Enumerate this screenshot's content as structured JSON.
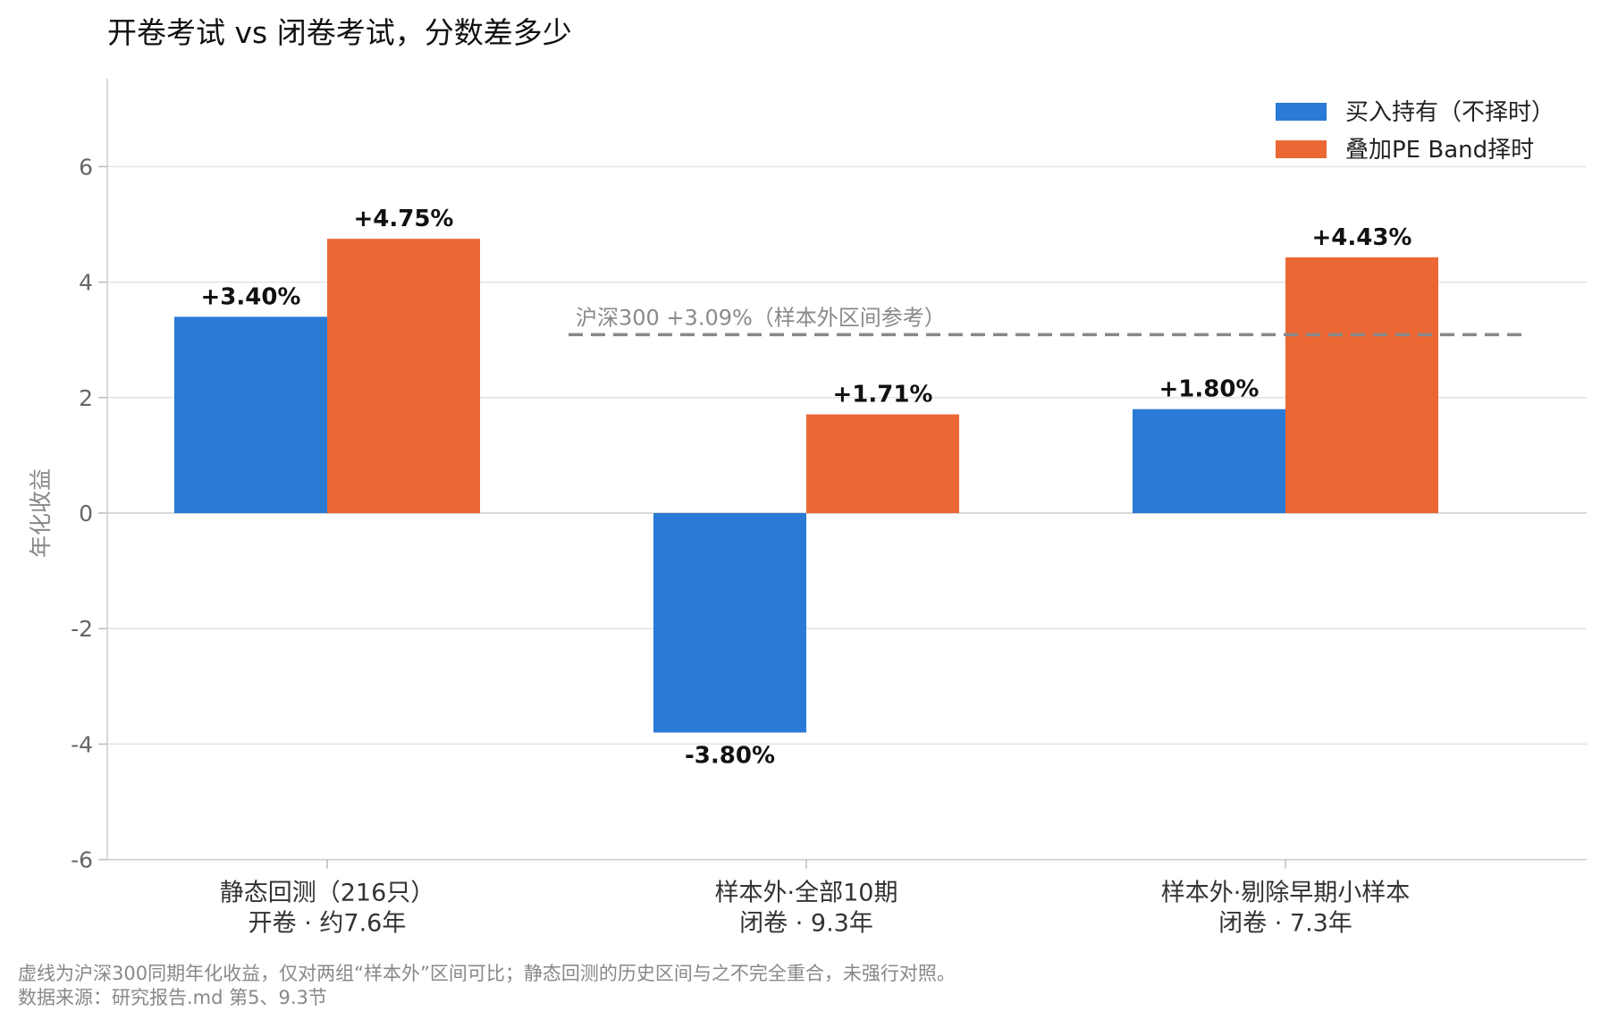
{
  "chart_data": {
    "type": "bar",
    "title": "开卷考试 vs 闭卷考试，分数差多少",
    "ylabel": "年化收益",
    "ylim": [
      -6,
      7.5
    ],
    "yticks": [
      6,
      4,
      2,
      0,
      -2,
      -4,
      -6
    ],
    "categories": [
      {
        "line1": "静态回测（216只）",
        "line2": "开卷 · 约7.6年"
      },
      {
        "line1": "样本外·全部10期",
        "line2": "闭卷 · 9.3年"
      },
      {
        "line1": "样本外·剔除早期小样本",
        "line2": "闭卷 · 7.3年"
      }
    ],
    "series": [
      {
        "name": "买入持有（不择时）",
        "color": "#2a7ad6",
        "values": [
          3.4,
          -3.8,
          1.8
        ],
        "labels": [
          "+3.40%",
          "-3.80%",
          "+1.80%"
        ]
      },
      {
        "name": "叠加PE Band择时",
        "color": "#eb6835",
        "values": [
          4.75,
          1.71,
          4.43
        ],
        "labels": [
          "+4.75%",
          "+1.71%",
          "+4.43%"
        ]
      }
    ],
    "reference_line": {
      "value": 3.09,
      "label": "沪深300 +3.09%（样本外区间参考）",
      "color": "#888888",
      "style": "dashed",
      "span": "out-of-sample groups"
    },
    "grid": true,
    "legend_position": "top-right"
  },
  "footnotes": [
    "虚线为沪深300同期年化收益，仅对两组“样本外”区间可比；静态回测的历史区间与之不完全重合，未强行对照。",
    "数据来源：研究报告.md 第5、9.3节"
  ]
}
